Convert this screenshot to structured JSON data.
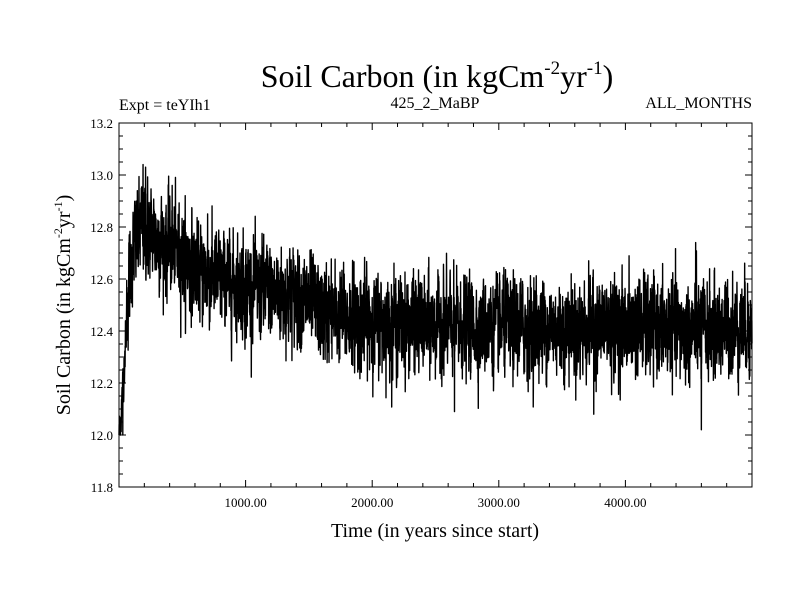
{
  "chart_data": {
    "type": "line",
    "title": "Soil Carbon (in kgCm",
    "title_sup1": "-2",
    "title_mid": "yr",
    "title_sup2": "-1",
    "title_end": ")",
    "subtitle_left": "Expt = teYIh1",
    "subtitle_center": "425_2_MaBP",
    "subtitle_right": "ALL_MONTHS",
    "xlabel": "Time (in years since start)",
    "ylabel": "Soil Carbon (in kgCm",
    "ylabel_sup1": "-2",
    "ylabel_mid": "yr",
    "ylabel_sup2": "-1",
    "ylabel_end": ")",
    "xlim": [
      0,
      5000
    ],
    "ylim": [
      11.8,
      13.2
    ],
    "x_ticks": [
      1000,
      2000,
      3000,
      4000
    ],
    "x_tick_labels": [
      "1000.00",
      "2000.00",
      "3000.00",
      "4000.00"
    ],
    "y_ticks": [
      11.8,
      12.0,
      12.2,
      12.4,
      12.6,
      12.8,
      13.0,
      13.2
    ],
    "y_tick_labels": [
      "11.8",
      "12.0",
      "12.2",
      "12.4",
      "12.6",
      "12.8",
      "13.0",
      "13.2"
    ],
    "series": [
      {
        "name": "soil_carbon",
        "color": "#000000",
        "noise_amplitude": 0.085,
        "anchors": [
          [
            0,
            12.0
          ],
          [
            20,
            12.1
          ],
          [
            50,
            12.35
          ],
          [
            80,
            12.6
          ],
          [
            120,
            12.72
          ],
          [
            180,
            12.8
          ],
          [
            250,
            12.78
          ],
          [
            350,
            12.74
          ],
          [
            450,
            12.71
          ],
          [
            550,
            12.67
          ],
          [
            650,
            12.62
          ],
          [
            800,
            12.6
          ],
          [
            1000,
            12.57
          ],
          [
            1200,
            12.55
          ],
          [
            1400,
            12.54
          ],
          [
            1600,
            12.47
          ],
          [
            1800,
            12.45
          ],
          [
            2000,
            12.44
          ],
          [
            2500,
            12.42
          ],
          [
            3000,
            12.42
          ],
          [
            3500,
            12.41
          ],
          [
            4000,
            12.42
          ],
          [
            4500,
            12.4
          ],
          [
            5000,
            12.42
          ]
        ],
        "extremes": [
          [
            30,
            12.0
          ],
          [
            190,
            13.04
          ],
          [
            210,
            13.03
          ],
          [
            420,
            12.96
          ],
          [
            700,
            12.85
          ],
          [
            2650,
            12.09
          ],
          [
            3750,
            12.08
          ],
          [
            4600,
            12.02
          ],
          [
            4555,
            12.74
          ]
        ]
      }
    ]
  }
}
